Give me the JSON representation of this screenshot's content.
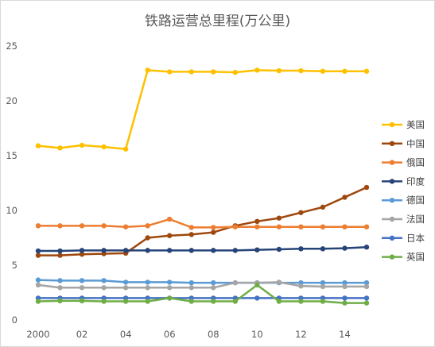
{
  "chart_data": {
    "type": "line",
    "title": "铁路运营总里程(万公里)",
    "xlabel": "",
    "ylabel": "",
    "x": [
      "2000",
      "2001",
      "2002",
      "2003",
      "2004",
      "2005",
      "2006",
      "2007",
      "2008",
      "2009",
      "2010",
      "2011",
      "2012",
      "2013",
      "2014",
      "2015"
    ],
    "x_tick_labels": [
      "2000",
      "02",
      "04",
      "06",
      "08",
      "10",
      "12",
      "14"
    ],
    "x_tick_positions": [
      "2000",
      "2002",
      "2004",
      "2006",
      "2008",
      "2010",
      "2012",
      "2014"
    ],
    "ylim": [
      0,
      25
    ],
    "y_ticks": [
      0,
      5,
      10,
      15,
      20,
      25
    ],
    "grid": false,
    "legend_position": "right",
    "series": [
      {
        "name": "美国",
        "color": "#FFC000",
        "values": [
          15.9,
          15.7,
          15.95,
          15.8,
          15.6,
          22.8,
          22.65,
          22.65,
          22.65,
          22.6,
          22.8,
          22.75,
          22.75,
          22.7,
          22.7,
          22.7
        ]
      },
      {
        "name": "中国",
        "color": "#9E480E",
        "values": [
          5.9,
          5.9,
          6.0,
          6.05,
          6.1,
          7.5,
          7.7,
          7.8,
          8.0,
          8.6,
          9.0,
          9.3,
          9.8,
          10.3,
          11.2,
          12.1
        ]
      },
      {
        "name": "俄国",
        "color": "#ED7D31",
        "values": [
          8.6,
          8.6,
          8.6,
          8.6,
          8.5,
          8.6,
          9.2,
          8.45,
          8.45,
          8.5,
          8.5,
          8.5,
          8.5,
          8.5,
          8.5,
          8.5
        ]
      },
      {
        "name": "印度",
        "color": "#264478",
        "values": [
          6.3,
          6.3,
          6.35,
          6.35,
          6.35,
          6.35,
          6.35,
          6.35,
          6.35,
          6.35,
          6.4,
          6.45,
          6.5,
          6.5,
          6.55,
          6.65
        ]
      },
      {
        "name": "德国",
        "color": "#5B9BD5",
        "values": [
          3.65,
          3.6,
          3.6,
          3.6,
          3.45,
          3.45,
          3.45,
          3.4,
          3.4,
          3.4,
          3.4,
          3.4,
          3.4,
          3.4,
          3.4,
          3.4
        ]
      },
      {
        "name": "法国",
        "color": "#A5A5A5",
        "values": [
          3.2,
          2.95,
          2.95,
          2.95,
          2.95,
          2.95,
          2.95,
          2.95,
          2.95,
          3.4,
          3.4,
          3.45,
          3.1,
          3.05,
          3.05,
          3.05
        ]
      },
      {
        "name": "日本",
        "color": "#4472C4",
        "values": [
          2.0,
          2.0,
          2.0,
          2.0,
          2.0,
          2.0,
          2.0,
          2.0,
          2.0,
          2.0,
          2.0,
          2.0,
          2.0,
          2.0,
          2.0,
          2.0
        ]
      },
      {
        "name": "英国",
        "color": "#70AD47",
        "values": [
          1.7,
          1.75,
          1.75,
          1.7,
          1.7,
          1.7,
          2.0,
          1.7,
          1.7,
          1.7,
          3.2,
          1.7,
          1.7,
          1.7,
          1.55,
          1.55
        ]
      }
    ]
  }
}
